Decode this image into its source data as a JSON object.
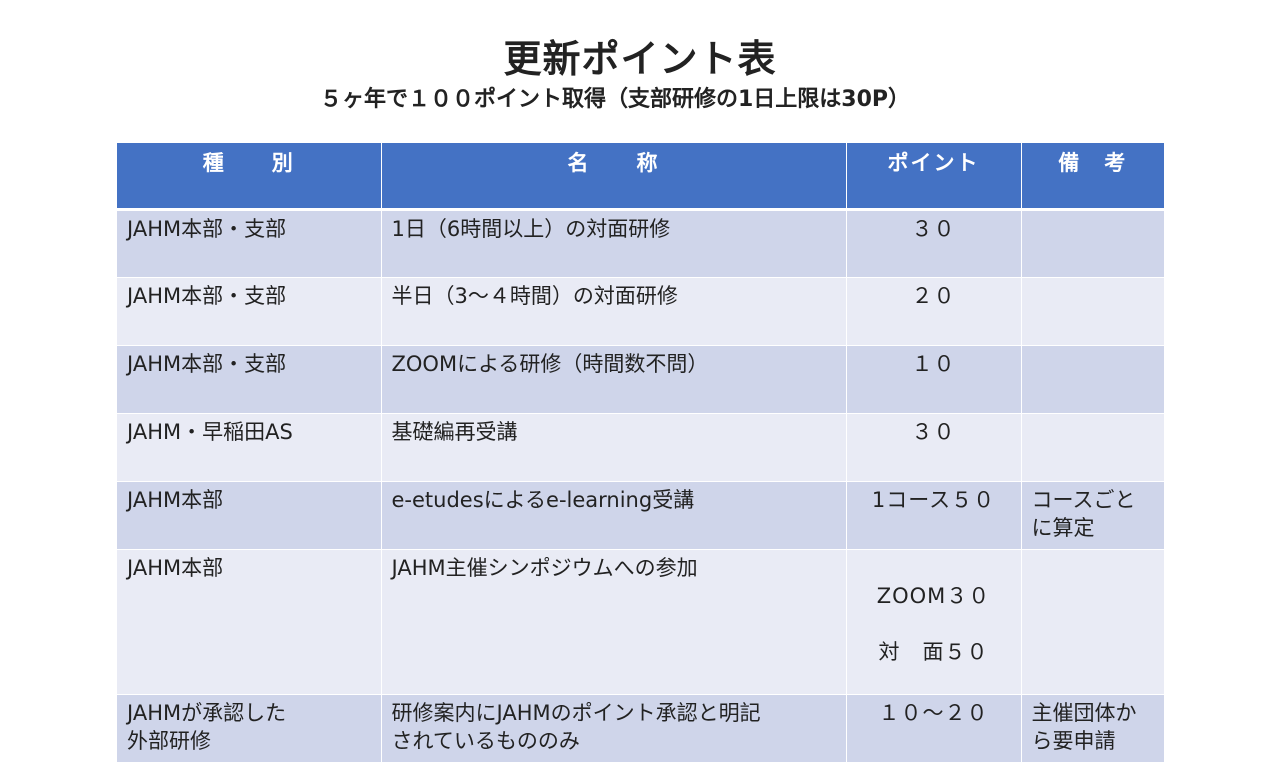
{
  "title": "更新ポイント表",
  "subtitle": "５ヶ年で１００ポイント取得（支部研修の1日上限は30P）",
  "table": {
    "headers": [
      "種　　別",
      "名　　称",
      "ポイント",
      "備　考"
    ],
    "rows": [
      {
        "type": "JAHM本部・支部",
        "name": "1日（6時間以上）の対面研修",
        "points": "３０",
        "note": ""
      },
      {
        "type": "JAHM本部・支部",
        "name": "半日（3～４時間）の対面研修",
        "points": "２０",
        "note": ""
      },
      {
        "type": "JAHM本部・支部",
        "name": "ZOOMによる研修（時間数不問）",
        "points": "１０",
        "note": ""
      },
      {
        "type": "JAHM・早稲田AS",
        "name": "基礎編再受講",
        "points": "３０",
        "note": ""
      },
      {
        "type": "JAHM本部",
        "name": "e-etudesによるe-learning受講",
        "points": "1コース５０",
        "note": "コースごと\nに算定"
      },
      {
        "type": "JAHM本部",
        "name": "JAHM主催シンポジウムへの参加",
        "points": "ZOOM３０",
        "points2": "対　面５０",
        "note": ""
      },
      {
        "type": "JAHMが承認した\n外部研修",
        "name": "研修案内にJAHMのポイント承認と明記\nされているもののみ",
        "points": "１０～２０",
        "note": "主催団体か\nら要申請"
      }
    ]
  }
}
